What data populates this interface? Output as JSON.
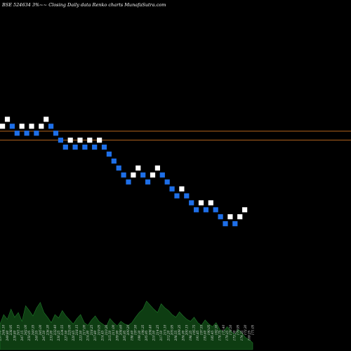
{
  "chart_data": {
    "type": "renko",
    "title": "BSE 524634  3%~~  Closing Daily data  Renko  charts MunafaSutra.com",
    "colors": {
      "background": "#000000",
      "up_brick": "#ffffff",
      "down_brick": "#1e6fe8",
      "reference_line": "#b5651d",
      "volume_fill": "#0e3d12",
      "volume_outline": "#1f7a2a"
    },
    "reference_levels": [
      231,
      222
    ],
    "bricks": [
      {
        "dir": "up",
        "value": 236
      },
      {
        "dir": "up",
        "value": 243
      },
      {
        "dir": "down",
        "value": 236
      },
      {
        "dir": "down",
        "value": 229
      },
      {
        "dir": "up",
        "value": 236
      },
      {
        "dir": "down",
        "value": 229
      },
      {
        "dir": "up",
        "value": 236
      },
      {
        "dir": "down",
        "value": 229
      },
      {
        "dir": "up",
        "value": 236
      },
      {
        "dir": "up",
        "value": 243
      },
      {
        "dir": "down",
        "value": 236
      },
      {
        "dir": "down",
        "value": 229
      },
      {
        "dir": "down",
        "value": 222
      },
      {
        "dir": "down",
        "value": 215
      },
      {
        "dir": "up",
        "value": 222
      },
      {
        "dir": "down",
        "value": 215
      },
      {
        "dir": "up",
        "value": 222
      },
      {
        "dir": "down",
        "value": 215
      },
      {
        "dir": "up",
        "value": 222
      },
      {
        "dir": "down",
        "value": 215
      },
      {
        "dir": "up",
        "value": 222
      },
      {
        "dir": "down",
        "value": 215
      },
      {
        "dir": "down",
        "value": 208
      },
      {
        "dir": "down",
        "value": 201
      },
      {
        "dir": "down",
        "value": 194
      },
      {
        "dir": "down",
        "value": 187
      },
      {
        "dir": "down",
        "value": 180
      },
      {
        "dir": "up",
        "value": 187
      },
      {
        "dir": "up",
        "value": 194
      },
      {
        "dir": "down",
        "value": 187
      },
      {
        "dir": "down",
        "value": 180
      },
      {
        "dir": "up",
        "value": 187
      },
      {
        "dir": "up",
        "value": 194
      },
      {
        "dir": "down",
        "value": 187
      },
      {
        "dir": "down",
        "value": 180
      },
      {
        "dir": "down",
        "value": 173
      },
      {
        "dir": "down",
        "value": 166
      },
      {
        "dir": "up",
        "value": 173
      },
      {
        "dir": "down",
        "value": 166
      },
      {
        "dir": "down",
        "value": 159
      },
      {
        "dir": "down",
        "value": 152
      },
      {
        "dir": "up",
        "value": 159
      },
      {
        "dir": "down",
        "value": 152
      },
      {
        "dir": "up",
        "value": 159
      },
      {
        "dir": "down",
        "value": 152
      },
      {
        "dir": "down",
        "value": 145
      },
      {
        "dir": "down",
        "value": 138
      },
      {
        "dir": "up",
        "value": 145
      },
      {
        "dir": "down",
        "value": 138
      },
      {
        "dir": "up",
        "value": 145
      },
      {
        "dir": "up",
        "value": 152
      }
    ],
    "volume": {
      "values": [
        38,
        52,
        45,
        60,
        48,
        55,
        42,
        65,
        58,
        50,
        62,
        70,
        55,
        48,
        40,
        52,
        47,
        58,
        50,
        44,
        38,
        46,
        52,
        40,
        36,
        44,
        50,
        42,
        38,
        34,
        46,
        40,
        35,
        42,
        38,
        36,
        40,
        48,
        55,
        60,
        72,
        66,
        60,
        55,
        68,
        62,
        58,
        52,
        48,
        56,
        50,
        45,
        42,
        48,
        40,
        36,
        44,
        38,
        34,
        40,
        30,
        26,
        34,
        28,
        22,
        30,
        25,
        18,
        15,
        10
      ],
      "labels": [
        "237.70",
        "244.10",
        "249.80",
        "238.95",
        "239.80",
        "241.15",
        "247.15",
        "242.00",
        "250.05",
        "240.35",
        "240.55",
        "245.00",
        "247.50",
        "236.30",
        "233.00",
        "233.40",
        "230.25",
        "234.55",
        "227.50",
        "225.00",
        "220.65",
        "218.15",
        "223.50",
        "217.00",
        "214.90",
        "218.25",
        "217.80",
        "219.05",
        "214.45",
        "210.20",
        "215.50",
        "211.00",
        "209.90",
        "208.60",
        "205.95",
        "200.20",
        "198.60",
        "197.50",
        "199.30",
        "196.35",
        "205.95",
        "208.40",
        "210.50",
        "214.25",
        "217.50",
        "215.10",
        "212.20",
        "205.95",
        "208.55",
        "209.35",
        "204.00",
        "200.15",
        "198.35",
        "195.75",
        "191.85",
        "197.55",
        "193.60",
        "190.05",
        "185.45",
        "182.30",
        "178.75",
        "175.40",
        "179.25",
        "176.50",
        "173.30",
        "170.95",
        "174.35",
        "172.30",
        "169.25",
        "171.05"
      ]
    }
  }
}
